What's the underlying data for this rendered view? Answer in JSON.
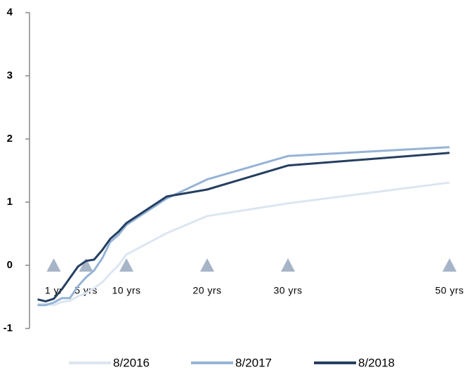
{
  "chart_data": {
    "type": "line",
    "x": [
      -1,
      0,
      1,
      2,
      3,
      4,
      5,
      6,
      7,
      8,
      9,
      10,
      15,
      20,
      30,
      50
    ],
    "series": [
      {
        "name": "8/2016",
        "color": "#dce6f1",
        "values": [
          -0.61,
          -0.61,
          -0.63,
          -0.58,
          -0.56,
          -0.49,
          -0.44,
          -0.36,
          -0.27,
          -0.13,
          0.0,
          0.17,
          0.51,
          0.78,
          0.98,
          1.31
        ]
      },
      {
        "name": "8/2017",
        "color": "#95b3d7",
        "values": [
          -0.63,
          -0.63,
          -0.59,
          -0.52,
          -0.52,
          -0.33,
          -0.19,
          -0.08,
          0.11,
          0.37,
          0.48,
          0.64,
          1.06,
          1.36,
          1.73,
          1.87
        ]
      },
      {
        "name": "8/2018",
        "color": "#243f60",
        "values": [
          -0.54,
          -0.57,
          -0.53,
          -0.38,
          -0.2,
          -0.02,
          0.07,
          0.09,
          0.24,
          0.42,
          0.53,
          0.67,
          1.09,
          1.2,
          1.58,
          1.78
        ]
      }
    ],
    "markers": [
      {
        "x": 1,
        "y": 0,
        "label": "1 yr"
      },
      {
        "x": 5,
        "y": 0,
        "label": "5 yrs"
      },
      {
        "x": 10,
        "y": 0,
        "label": "10 yrs"
      },
      {
        "x": 20,
        "y": 0,
        "label": "20 yrs"
      },
      {
        "x": 30,
        "y": 0,
        "label": "30 yrs"
      },
      {
        "x": 50,
        "y": 0,
        "label": "50 yrs"
      }
    ],
    "marker_color": "#a6b4c8",
    "xlim": [
      -2,
      52.5
    ],
    "ylim": [
      -1,
      4
    ],
    "yticks": [
      -1,
      0,
      1,
      2,
      3,
      4
    ],
    "grid": false,
    "legend": "bottom"
  }
}
